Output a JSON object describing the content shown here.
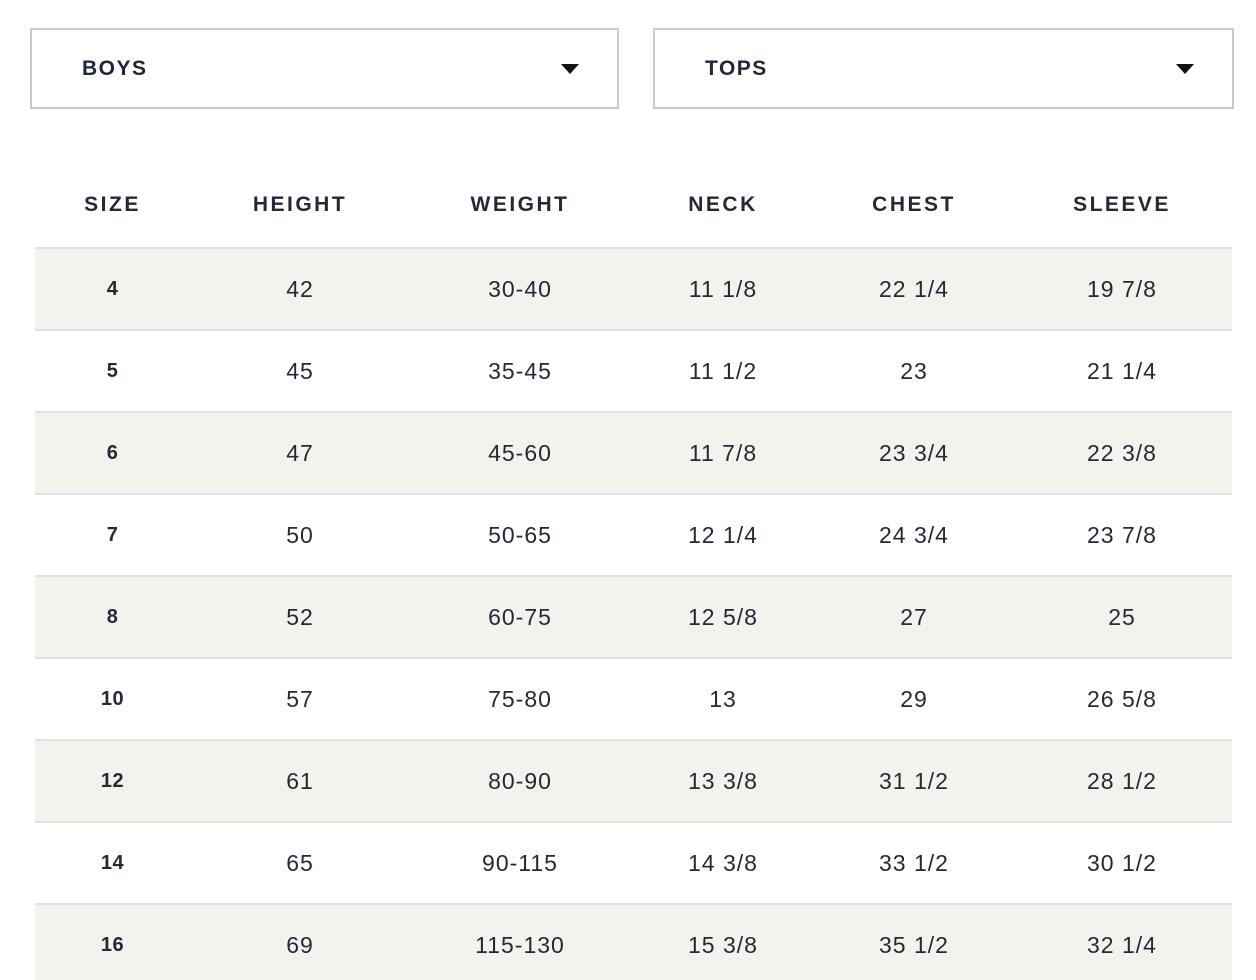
{
  "filters": {
    "gender_select": {
      "value": "BOYS"
    },
    "category_select": {
      "value": "TOPS"
    }
  },
  "size_chart": {
    "columns": [
      "SIZE",
      "HEIGHT",
      "WEIGHT",
      "NECK",
      "CHEST",
      "SLEEVE"
    ],
    "rows": [
      [
        "4",
        "42",
        "30-40",
        "11 1/8",
        "22 1/4",
        "19 7/8"
      ],
      [
        "5",
        "45",
        "35-45",
        "11 1/2",
        "23",
        "21 1/4"
      ],
      [
        "6",
        "47",
        "45-60",
        "11 7/8",
        "23 3/4",
        "22 3/8"
      ],
      [
        "7",
        "50",
        "50-65",
        "12 1/4",
        "24 3/4",
        "23 7/8"
      ],
      [
        "8",
        "52",
        "60-75",
        "12 5/8",
        "27",
        "25"
      ],
      [
        "10",
        "57",
        "75-80",
        "13",
        "29",
        "26 5/8"
      ],
      [
        "12",
        "61",
        "80-90",
        "13 3/8",
        "31 1/2",
        "28 1/2"
      ],
      [
        "14",
        "65",
        "90-115",
        "14 3/8",
        "33 1/2",
        "30 1/2"
      ],
      [
        "16",
        "69",
        "115-130",
        "15 3/8",
        "35 1/2",
        "32 1/4"
      ]
    ]
  },
  "colors": {
    "row_stripe": "#f3f2ed",
    "row_border": "#dee2e5",
    "text": "#232937",
    "dropdown_border": "#c9cacb"
  }
}
